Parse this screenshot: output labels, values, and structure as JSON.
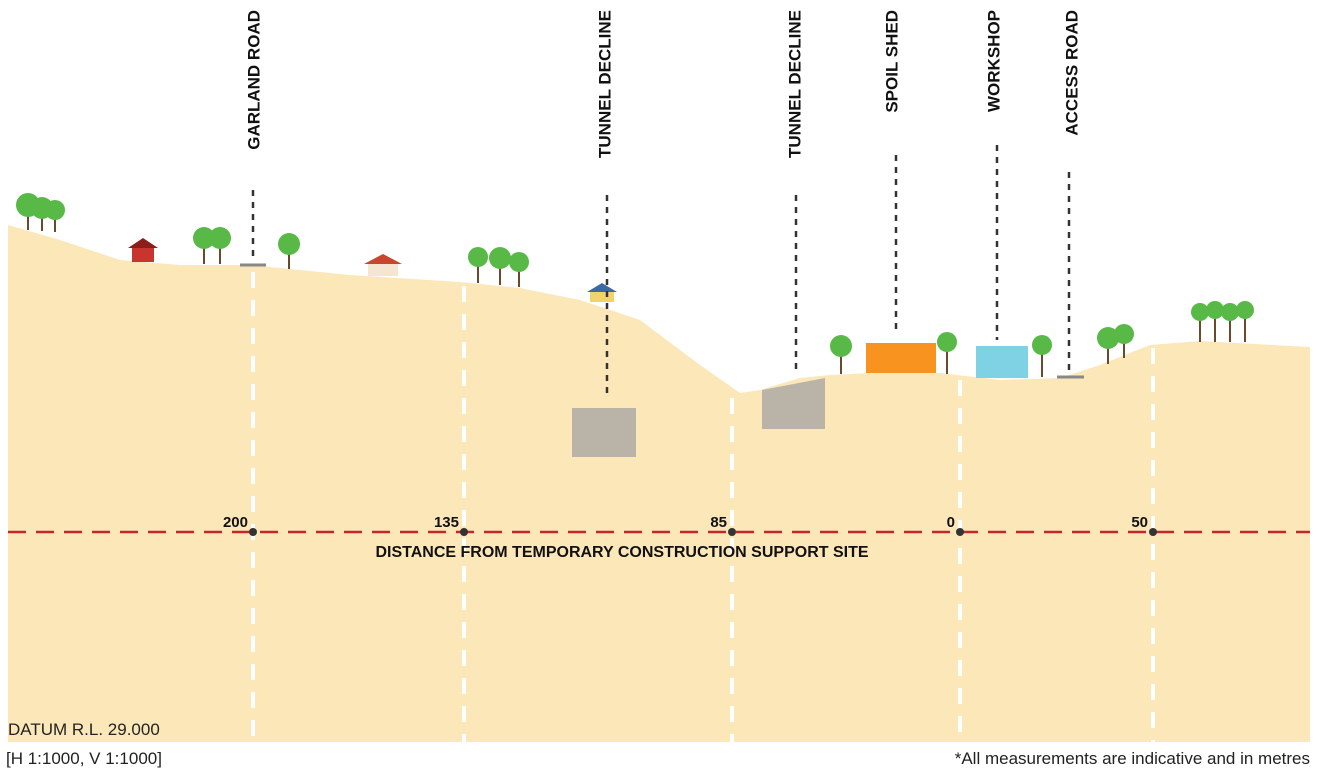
{
  "markers": [
    {
      "label": "GARLAND ROAD"
    },
    {
      "label": "TUNNEL DECLINE"
    },
    {
      "label": "TUNNEL DECLINE"
    },
    {
      "label": "SPOIL SHED"
    },
    {
      "label": "WORKSHOP"
    },
    {
      "label": "ACCESS ROAD"
    }
  ],
  "distances": [
    200,
    135,
    85,
    0,
    50
  ],
  "distance_label": "DISTANCE FROM TEMPORARY CONSTRUCTION SUPPORT SITE",
  "datum": "DATUM R.L. 29.000",
  "scale": "[H 1:1000, V 1:1000]",
  "footnote": "*All measurements are indicative and in metres"
}
